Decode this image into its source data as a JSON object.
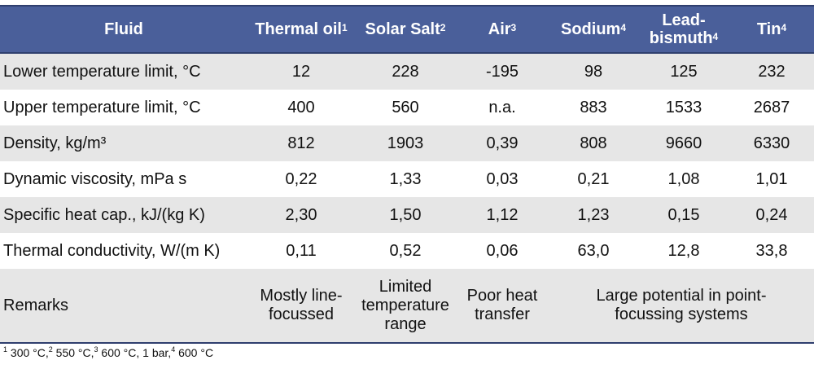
{
  "header": {
    "fluid": "Fluid",
    "thermal_oil": "Thermal oil",
    "thermal_oil_sup": "1",
    "solar_salt": "Solar Salt",
    "solar_salt_sup": "2",
    "air": "Air",
    "air_sup": "3",
    "sodium": "Sodium",
    "sodium_sup": "4",
    "lead_bismuth_1": "Lead-",
    "lead_bismuth_2": "bismuth",
    "lead_bismuth_sup": "4",
    "tin": "Tin",
    "tin_sup": "4"
  },
  "rows": [
    {
      "label": "Lower temperature limit, °C",
      "values": [
        "12",
        "228",
        "-195",
        "98",
        "125",
        "232"
      ]
    },
    {
      "label": "Upper temperature limit, °C",
      "values": [
        "400",
        "560",
        "n.a.",
        "883",
        "1533",
        "2687"
      ]
    },
    {
      "label": "Density, kg/m³",
      "values": [
        "812",
        "1903",
        "0,39",
        "808",
        "9660",
        "6330"
      ]
    },
    {
      "label": "Dynamic viscosity, mPa s",
      "values": [
        "0,22",
        "1,33",
        "0,03",
        "0,21",
        "1,08",
        "1,01"
      ]
    },
    {
      "label": "Specific heat cap., kJ/(kg K)",
      "values": [
        "2,30",
        "1,50",
        "1,12",
        "1,23",
        "0,15",
        "0,24"
      ]
    },
    {
      "label": "Thermal conductivity, W/(m K)",
      "values": [
        "0,11",
        "0,52",
        "0,06",
        "63,0",
        "12,8",
        "33,8"
      ]
    }
  ],
  "remarks": {
    "label": "Remarks",
    "thermal_oil": [
      "Mostly line-",
      "focussed"
    ],
    "solar_salt": [
      "Limited",
      "temperature",
      "range"
    ],
    "air": [
      "Poor heat",
      "transfer"
    ],
    "metals": [
      "Large potential in point-",
      "focussing systems"
    ]
  },
  "footnote": {
    "s1": "1",
    "t1": " 300 °C,",
    "s2": "2",
    "t2": " 550 °C,",
    "s3": "3",
    "t3": " 600 °C, 1 bar,",
    "s4": "4",
    "t4": " 600 °C"
  }
}
